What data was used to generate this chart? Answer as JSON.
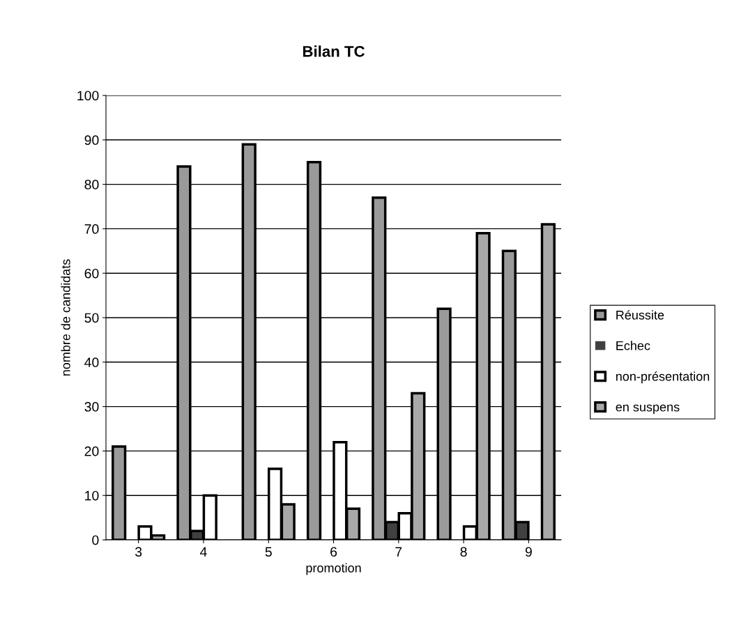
{
  "chart_data": {
    "type": "bar",
    "title": "Bilan TC",
    "xlabel": "promotion",
    "ylabel": "nombre de candidats",
    "categories": [
      "3",
      "4",
      "5",
      "6",
      "7",
      "8",
      "9"
    ],
    "series": [
      {
        "name": "Réussite",
        "color": "#9a9a9a",
        "values": [
          21,
          84,
          89,
          85,
          77,
          52,
          65
        ]
      },
      {
        "name": "Echec",
        "color": "#404040",
        "values": [
          0,
          2,
          0,
          0,
          4,
          0,
          4
        ]
      },
      {
        "name": "non-présentation",
        "color": "#ffffff",
        "values": [
          3,
          10,
          16,
          22,
          6,
          3,
          0
        ]
      },
      {
        "name": "en suspens",
        "color": "#a8a8a8",
        "values": [
          1,
          0,
          8,
          7,
          33,
          69,
          71
        ]
      }
    ],
    "ylim": [
      0,
      100
    ],
    "yticks": [
      0,
      10,
      20,
      30,
      40,
      50,
      60,
      70,
      80,
      90,
      100
    ],
    "grid": "y",
    "legend": "right"
  }
}
